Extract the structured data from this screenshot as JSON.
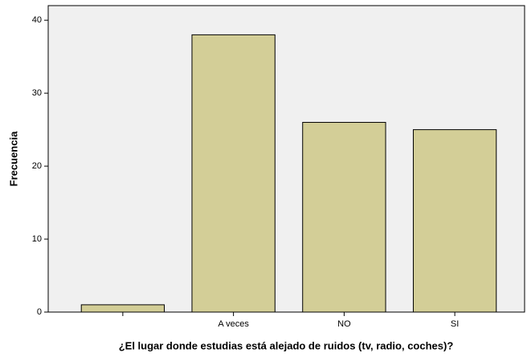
{
  "chart_data": {
    "type": "bar",
    "x_label": "¿El lugar donde estudias está alejado de ruidos (tv, radio, coches)?",
    "y_label": "Frecuencia",
    "categories": [
      null,
      "A veces",
      "NO",
      "SI"
    ],
    "values": [
      1,
      38,
      26,
      25
    ],
    "color": "#d3ce97",
    "ylim": [
      0,
      42
    ],
    "yticks": [
      0,
      10,
      20,
      30,
      40
    ],
    "grid": false
  }
}
